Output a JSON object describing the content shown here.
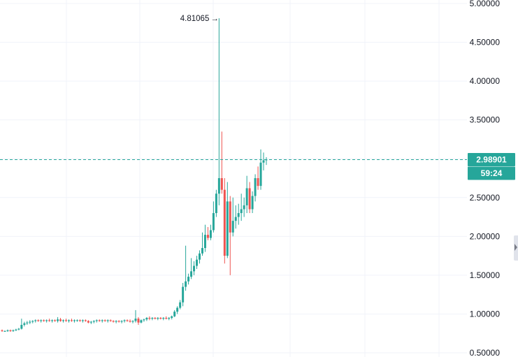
{
  "chart_data": {
    "type": "candlestick",
    "ylim": [
      0.5,
      5.0
    ],
    "y_ticks": [
      "5.00000",
      "4.50000",
      "4.00000",
      "3.50000",
      "3.00000",
      "2.50000",
      "2.00000",
      "1.50000",
      "1.00000",
      "0.50000"
    ],
    "y_tick_values": [
      5.0,
      4.5,
      4.0,
      3.5,
      3.0,
      2.5,
      2.0,
      1.5,
      1.0,
      0.5
    ],
    "grid": true,
    "last_price": 2.98901,
    "last_price_label": "2.98901",
    "countdown_label": "59:24",
    "high_value": 4.81065,
    "high_label": "4.81065",
    "high_arrow": "→",
    "up_color": "#26a69a",
    "down_color": "#ef5350",
    "price_line_color": "#26a69a",
    "candles": [
      [
        0.79,
        0.8,
        0.77,
        0.78
      ],
      [
        0.78,
        0.79,
        0.77,
        0.78
      ],
      [
        0.78,
        0.8,
        0.77,
        0.79
      ],
      [
        0.79,
        0.8,
        0.77,
        0.78
      ],
      [
        0.78,
        0.8,
        0.77,
        0.79
      ],
      [
        0.79,
        0.81,
        0.78,
        0.8
      ],
      [
        0.8,
        0.82,
        0.79,
        0.81
      ],
      [
        0.81,
        0.94,
        0.8,
        0.86
      ],
      [
        0.86,
        0.9,
        0.84,
        0.88
      ],
      [
        0.88,
        0.91,
        0.86,
        0.89
      ],
      [
        0.89,
        0.92,
        0.87,
        0.9
      ],
      [
        0.9,
        0.92,
        0.88,
        0.91
      ],
      [
        0.91,
        0.93,
        0.89,
        0.92
      ],
      [
        0.92,
        0.93,
        0.9,
        0.91
      ],
      [
        0.91,
        0.93,
        0.89,
        0.92
      ],
      [
        0.92,
        0.93,
        0.9,
        0.91
      ],
      [
        0.91,
        0.93,
        0.89,
        0.92
      ],
      [
        0.92,
        0.94,
        0.9,
        0.91
      ],
      [
        0.91,
        0.93,
        0.89,
        0.92
      ],
      [
        0.92,
        0.93,
        0.9,
        0.91
      ],
      [
        0.91,
        0.96,
        0.89,
        0.93
      ],
      [
        0.93,
        0.95,
        0.9,
        0.91
      ],
      [
        0.91,
        0.93,
        0.89,
        0.92
      ],
      [
        0.92,
        0.94,
        0.9,
        0.91
      ],
      [
        0.91,
        0.93,
        0.89,
        0.92
      ],
      [
        0.92,
        0.94,
        0.9,
        0.91
      ],
      [
        0.91,
        0.93,
        0.89,
        0.92
      ],
      [
        0.92,
        0.93,
        0.9,
        0.92
      ],
      [
        0.92,
        0.93,
        0.9,
        0.91
      ],
      [
        0.91,
        0.93,
        0.89,
        0.92
      ],
      [
        0.92,
        0.93,
        0.9,
        0.91
      ],
      [
        0.91,
        0.92,
        0.88,
        0.89
      ],
      [
        0.89,
        0.91,
        0.87,
        0.9
      ],
      [
        0.9,
        0.92,
        0.88,
        0.91
      ],
      [
        0.91,
        0.93,
        0.89,
        0.92
      ],
      [
        0.92,
        0.93,
        0.9,
        0.91
      ],
      [
        0.91,
        0.93,
        0.89,
        0.92
      ],
      [
        0.92,
        0.93,
        0.9,
        0.91
      ],
      [
        0.91,
        0.93,
        0.89,
        0.92
      ],
      [
        0.92,
        0.93,
        0.9,
        0.91
      ],
      [
        0.91,
        0.92,
        0.89,
        0.9
      ],
      [
        0.9,
        0.92,
        0.88,
        0.91
      ],
      [
        0.91,
        0.92,
        0.89,
        0.9
      ],
      [
        0.9,
        0.92,
        0.88,
        0.91
      ],
      [
        0.91,
        0.93,
        0.89,
        0.92
      ],
      [
        0.92,
        0.93,
        0.9,
        0.91
      ],
      [
        0.91,
        0.93,
        0.89,
        0.9
      ],
      [
        0.9,
        0.92,
        0.88,
        0.91
      ],
      [
        0.91,
        1.05,
        0.89,
        0.94
      ],
      [
        0.94,
        0.96,
        0.86,
        0.89
      ],
      [
        0.89,
        0.93,
        0.88,
        0.92
      ],
      [
        0.92,
        0.94,
        0.9,
        0.93
      ],
      [
        0.93,
        0.96,
        0.91,
        0.95
      ],
      [
        0.95,
        0.97,
        0.92,
        0.94
      ],
      [
        0.94,
        0.96,
        0.92,
        0.95
      ],
      [
        0.95,
        0.96,
        0.93,
        0.94
      ],
      [
        0.94,
        0.96,
        0.92,
        0.95
      ],
      [
        0.95,
        0.96,
        0.93,
        0.94
      ],
      [
        0.94,
        0.96,
        0.92,
        0.95
      ],
      [
        0.95,
        0.97,
        0.93,
        0.94
      ],
      [
        0.94,
        0.96,
        0.92,
        0.95
      ],
      [
        0.95,
        0.98,
        0.93,
        0.97
      ],
      [
        0.97,
        1.05,
        0.96,
        1.03
      ],
      [
        1.03,
        1.1,
        1.0,
        1.08
      ],
      [
        1.08,
        1.18,
        1.06,
        1.15
      ],
      [
        1.15,
        1.4,
        1.1,
        1.35
      ],
      [
        1.35,
        1.88,
        1.3,
        1.42
      ],
      [
        1.42,
        1.52,
        1.38,
        1.48
      ],
      [
        1.48,
        1.72,
        1.45,
        1.55
      ],
      [
        1.55,
        1.68,
        1.5,
        1.62
      ],
      [
        1.62,
        1.75,
        1.58,
        1.7
      ],
      [
        1.7,
        1.82,
        1.65,
        1.78
      ],
      [
        1.78,
        2.05,
        1.75,
        1.85
      ],
      [
        1.85,
        2.15,
        1.8,
        2.02
      ],
      [
        2.02,
        2.12,
        1.95,
        1.98
      ],
      [
        1.98,
        2.15,
        1.95,
        2.08
      ],
      [
        2.08,
        2.45,
        2.05,
        2.3
      ],
      [
        2.3,
        2.6,
        2.25,
        2.55
      ],
      [
        2.55,
        4.81,
        2.4,
        2.75
      ],
      [
        2.75,
        3.35,
        2.55,
        2.6
      ],
      [
        2.6,
        2.75,
        1.65,
        1.75
      ],
      [
        1.75,
        2.7,
        1.72,
        2.45
      ],
      [
        2.45,
        2.52,
        1.5,
        2.05
      ],
      [
        2.05,
        2.5,
        2.0,
        2.2
      ],
      [
        2.2,
        2.4,
        2.1,
        2.25
      ],
      [
        2.25,
        2.42,
        2.15,
        2.3
      ],
      [
        2.3,
        2.55,
        2.2,
        2.35
      ],
      [
        2.35,
        2.5,
        2.25,
        2.4
      ],
      [
        2.4,
        2.78,
        2.3,
        2.62
      ],
      [
        2.62,
        2.7,
        2.3,
        2.35
      ],
      [
        2.35,
        2.58,
        2.3,
        2.52
      ],
      [
        2.52,
        2.8,
        2.45,
        2.75
      ],
      [
        2.75,
        2.9,
        2.6,
        2.65
      ],
      [
        2.65,
        3.12,
        2.6,
        2.95
      ],
      [
        2.95,
        3.08,
        2.85,
        2.98
      ],
      [
        2.98,
        3.02,
        2.92,
        2.99
      ]
    ]
  }
}
